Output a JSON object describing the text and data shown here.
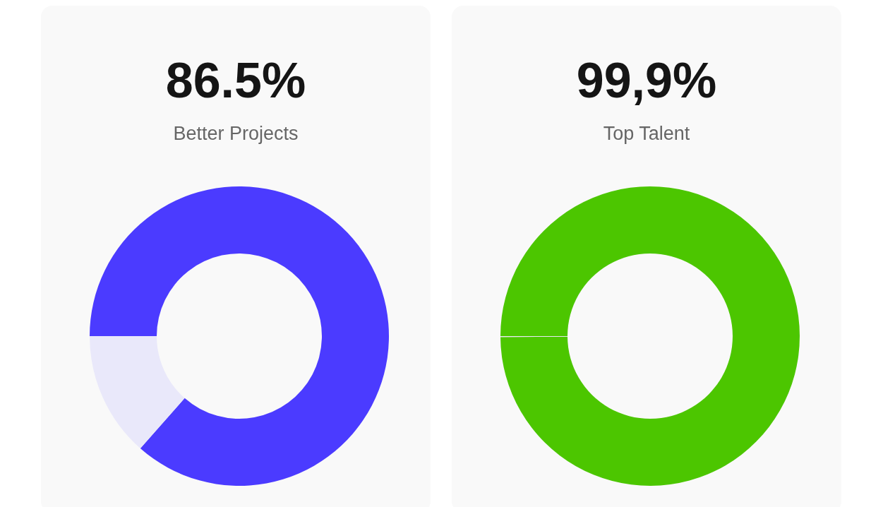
{
  "chart_data": [
    {
      "type": "donut",
      "title": "86.5%",
      "subtitle": "Better Projects",
      "categories": [
        null,
        null
      ],
      "values": [
        86.5,
        13.5
      ],
      "colors": [
        "#4b3bff",
        "#e9e8fa"
      ]
    },
    {
      "type": "donut",
      "title": "99,9%",
      "subtitle": "Top Talent",
      "categories": [
        null,
        null
      ],
      "values": [
        99.9,
        0.1
      ],
      "colors": [
        "#4cc600",
        "#e9e8f5"
      ]
    }
  ]
}
